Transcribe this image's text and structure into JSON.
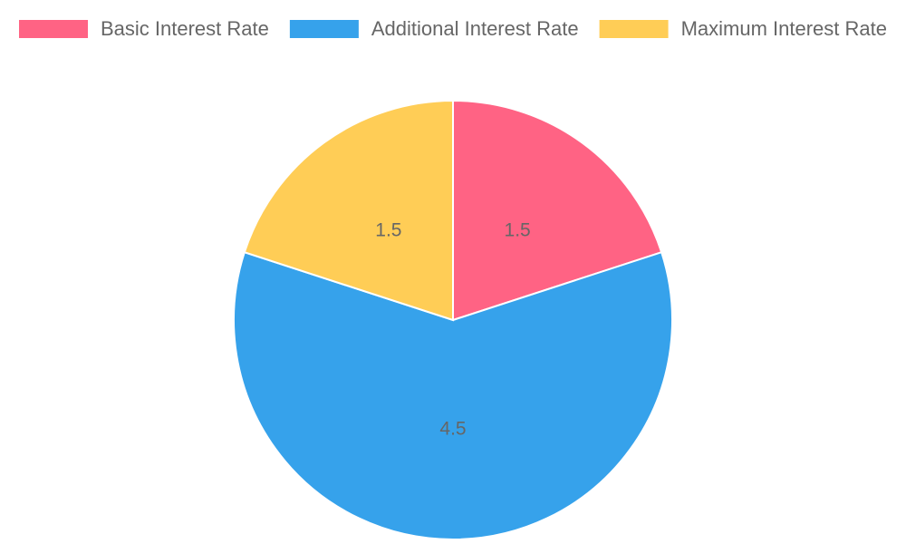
{
  "chart_data": {
    "type": "pie",
    "categories": [
      "Basic Interest Rate",
      "Additional Interest Rate",
      "Maximum Interest Rate"
    ],
    "values": [
      1.5,
      4.5,
      1.5
    ],
    "colors": [
      "#ff6384",
      "#36a2eb",
      "#ffcd56"
    ],
    "legend": "top"
  }
}
